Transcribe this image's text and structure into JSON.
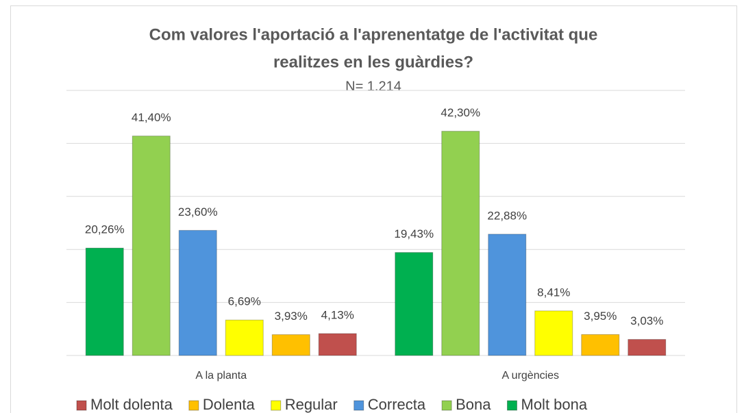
{
  "chart_data": {
    "type": "bar",
    "title": [
      "Com valores l'aportació a l'aprenentatge de l'activitat que",
      "realitzes en les guàrdies?"
    ],
    "subtitle": "N= 1.214",
    "categories": [
      "A la planta",
      "A urgències"
    ],
    "series": [
      {
        "name": "Molt bona",
        "color": "#00b050",
        "values": [
          20.26,
          19.43
        ],
        "value_labels": [
          "20,26%",
          "19,43%"
        ]
      },
      {
        "name": "Bona",
        "color": "#92d050",
        "values": [
          41.4,
          42.3
        ],
        "value_labels": [
          "41,40%",
          "42,30%"
        ]
      },
      {
        "name": "Correcta",
        "color": "#4f94dc",
        "values": [
          23.6,
          22.88
        ],
        "value_labels": [
          "23,60%",
          "22,88%"
        ]
      },
      {
        "name": "Regular",
        "color": "#ffff00",
        "values": [
          6.69,
          8.41
        ],
        "value_labels": [
          "6,69%",
          "8,41%"
        ]
      },
      {
        "name": "Dolenta",
        "color": "#ffc000",
        "values": [
          3.93,
          3.95
        ],
        "value_labels": [
          "3,93%",
          "3,95%"
        ]
      },
      {
        "name": "Molt dolenta",
        "color": "#c0504d",
        "values": [
          4.13,
          3.03
        ],
        "value_labels": [
          "4,13%",
          "3,03%"
        ]
      }
    ],
    "ylim": [
      0,
      50
    ],
    "yticks": [
      0,
      10,
      20,
      30,
      40,
      50
    ],
    "grid": true,
    "legend": "bottom"
  }
}
